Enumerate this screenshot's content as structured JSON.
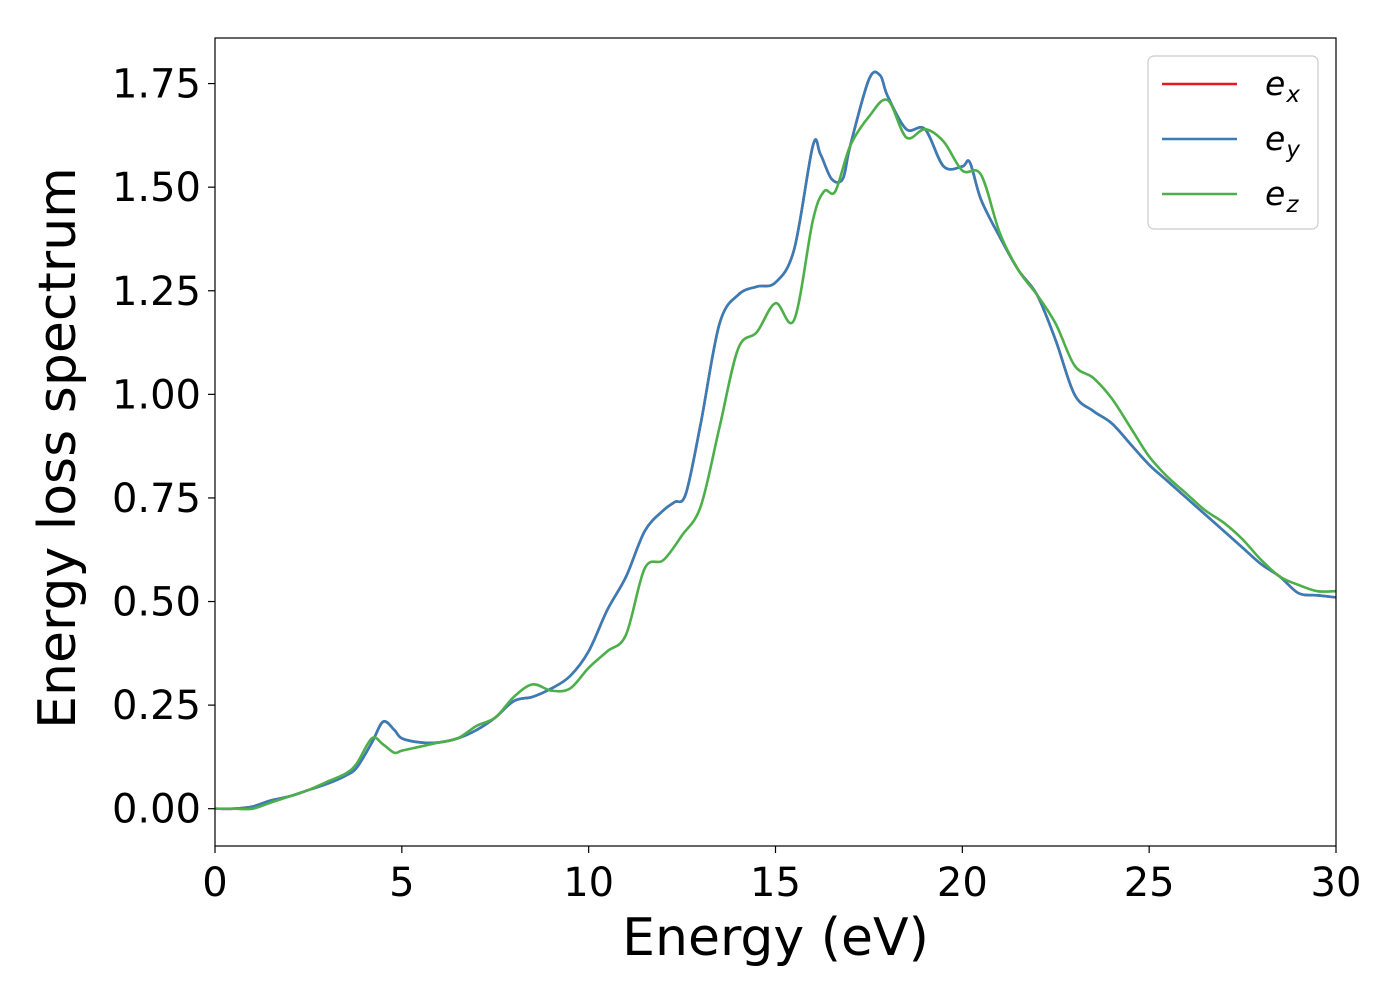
{
  "chart_data": {
    "type": "line",
    "title": "",
    "xlabel": "Energy (eV)",
    "ylabel": "Energy loss spectrum",
    "xlim": [
      0,
      30
    ],
    "ylim": [
      -0.09,
      1.86
    ],
    "grid": false,
    "legend_placement": "top-right",
    "x_ticks": [
      {
        "value": 0,
        "label": "0"
      },
      {
        "value": 5,
        "label": "5"
      },
      {
        "value": 10,
        "label": "10"
      },
      {
        "value": 15,
        "label": "15"
      },
      {
        "value": 20,
        "label": "20"
      },
      {
        "value": 25,
        "label": "25"
      },
      {
        "value": 30,
        "label": "30"
      }
    ],
    "y_ticks": [
      {
        "value": 0.0,
        "label": "0.00"
      },
      {
        "value": 0.25,
        "label": "0.25"
      },
      {
        "value": 0.5,
        "label": "0.50"
      },
      {
        "value": 0.75,
        "label": "0.75"
      },
      {
        "value": 1.0,
        "label": "1.00"
      },
      {
        "value": 1.25,
        "label": "1.25"
      },
      {
        "value": 1.5,
        "label": "1.50"
      },
      {
        "value": 1.75,
        "label": "1.75"
      }
    ],
    "series": [
      {
        "name": "e_x",
        "legend_base": "e",
        "legend_sub": "x",
        "color": "#e41a1c",
        "x": [
          0,
          0.5,
          1.0,
          1.5,
          2.0,
          2.5,
          3.0,
          3.5,
          3.8,
          4.2,
          4.5,
          4.8,
          5.0,
          5.5,
          6.0,
          6.5,
          7.0,
          7.5,
          8.0,
          8.5,
          9.0,
          9.5,
          10.0,
          10.5,
          11.0,
          11.5,
          12.0,
          12.3,
          12.6,
          13.0,
          13.5,
          14.0,
          14.5,
          15.0,
          15.5,
          16.0,
          16.2,
          16.5,
          16.8,
          17.0,
          17.5,
          17.8,
          18.0,
          18.5,
          19.0,
          19.5,
          20.0,
          20.2,
          20.5,
          21.0,
          21.5,
          22.0,
          22.5,
          23.0,
          23.5,
          24.0,
          24.5,
          25.0,
          25.5,
          26.0,
          26.5,
          27.0,
          27.5,
          28.0,
          28.5,
          29.0,
          29.5,
          30.0
        ],
        "y": [
          0.0,
          0.0,
          0.005,
          0.02,
          0.03,
          0.045,
          0.06,
          0.08,
          0.1,
          0.16,
          0.21,
          0.19,
          0.17,
          0.16,
          0.16,
          0.17,
          0.19,
          0.22,
          0.26,
          0.27,
          0.29,
          0.32,
          0.38,
          0.48,
          0.56,
          0.67,
          0.72,
          0.74,
          0.76,
          0.93,
          1.17,
          1.24,
          1.26,
          1.27,
          1.35,
          1.6,
          1.58,
          1.52,
          1.52,
          1.6,
          1.76,
          1.77,
          1.72,
          1.64,
          1.64,
          1.55,
          1.55,
          1.56,
          1.47,
          1.38,
          1.3,
          1.24,
          1.13,
          1.0,
          0.96,
          0.93,
          0.88,
          0.83,
          0.79,
          0.75,
          0.71,
          0.67,
          0.63,
          0.59,
          0.56,
          0.52,
          0.515,
          0.51
        ]
      },
      {
        "name": "e_y",
        "legend_base": "e",
        "legend_sub": "y",
        "color": "#377eb8",
        "x": [
          0,
          0.5,
          1.0,
          1.5,
          2.0,
          2.5,
          3.0,
          3.5,
          3.8,
          4.2,
          4.5,
          4.8,
          5.0,
          5.5,
          6.0,
          6.5,
          7.0,
          7.5,
          8.0,
          8.5,
          9.0,
          9.5,
          10.0,
          10.5,
          11.0,
          11.5,
          12.0,
          12.3,
          12.6,
          13.0,
          13.5,
          14.0,
          14.5,
          15.0,
          15.5,
          16.0,
          16.2,
          16.5,
          16.8,
          17.0,
          17.5,
          17.8,
          18.0,
          18.5,
          19.0,
          19.5,
          20.0,
          20.2,
          20.5,
          21.0,
          21.5,
          22.0,
          22.5,
          23.0,
          23.5,
          24.0,
          24.5,
          25.0,
          25.5,
          26.0,
          26.5,
          27.0,
          27.5,
          28.0,
          28.5,
          29.0,
          29.5,
          30.0
        ],
        "y": [
          0.0,
          0.0,
          0.005,
          0.02,
          0.03,
          0.045,
          0.06,
          0.08,
          0.1,
          0.16,
          0.21,
          0.19,
          0.17,
          0.16,
          0.16,
          0.17,
          0.19,
          0.22,
          0.26,
          0.27,
          0.29,
          0.32,
          0.38,
          0.48,
          0.56,
          0.67,
          0.72,
          0.74,
          0.76,
          0.93,
          1.17,
          1.24,
          1.26,
          1.27,
          1.35,
          1.6,
          1.58,
          1.52,
          1.52,
          1.6,
          1.76,
          1.77,
          1.72,
          1.64,
          1.64,
          1.55,
          1.55,
          1.56,
          1.47,
          1.38,
          1.3,
          1.24,
          1.13,
          1.0,
          0.96,
          0.93,
          0.88,
          0.83,
          0.79,
          0.75,
          0.71,
          0.67,
          0.63,
          0.59,
          0.56,
          0.52,
          0.515,
          0.51
        ]
      },
      {
        "name": "e_z",
        "legend_base": "e",
        "legend_sub": "z",
        "color": "#4daf4a",
        "x": [
          0,
          0.5,
          1.0,
          1.5,
          2.0,
          2.5,
          3.0,
          3.5,
          3.8,
          4.2,
          4.5,
          4.8,
          5.0,
          5.5,
          6.0,
          6.5,
          7.0,
          7.5,
          8.0,
          8.5,
          9.0,
          9.5,
          10.0,
          10.5,
          11.0,
          11.5,
          12.0,
          12.5,
          13.0,
          13.5,
          14.0,
          14.5,
          15.0,
          15.5,
          16.0,
          16.3,
          16.6,
          17.0,
          17.5,
          18.0,
          18.5,
          19.0,
          19.5,
          20.0,
          20.5,
          21.0,
          21.5,
          22.0,
          22.5,
          23.0,
          23.5,
          24.0,
          24.5,
          25.0,
          25.5,
          26.0,
          26.5,
          27.0,
          27.5,
          28.0,
          28.5,
          29.0,
          29.5,
          30.0
        ],
        "y": [
          0.0,
          0.0,
          0.0,
          0.015,
          0.03,
          0.045,
          0.065,
          0.085,
          0.11,
          0.17,
          0.155,
          0.135,
          0.14,
          0.15,
          0.16,
          0.17,
          0.2,
          0.22,
          0.27,
          0.3,
          0.285,
          0.29,
          0.34,
          0.38,
          0.42,
          0.58,
          0.6,
          0.66,
          0.73,
          0.92,
          1.11,
          1.15,
          1.22,
          1.18,
          1.42,
          1.49,
          1.49,
          1.6,
          1.67,
          1.71,
          1.62,
          1.64,
          1.61,
          1.54,
          1.53,
          1.39,
          1.3,
          1.24,
          1.17,
          1.07,
          1.04,
          0.99,
          0.92,
          0.85,
          0.8,
          0.76,
          0.72,
          0.69,
          0.65,
          0.6,
          0.56,
          0.54,
          0.525,
          0.525
        ]
      }
    ]
  }
}
